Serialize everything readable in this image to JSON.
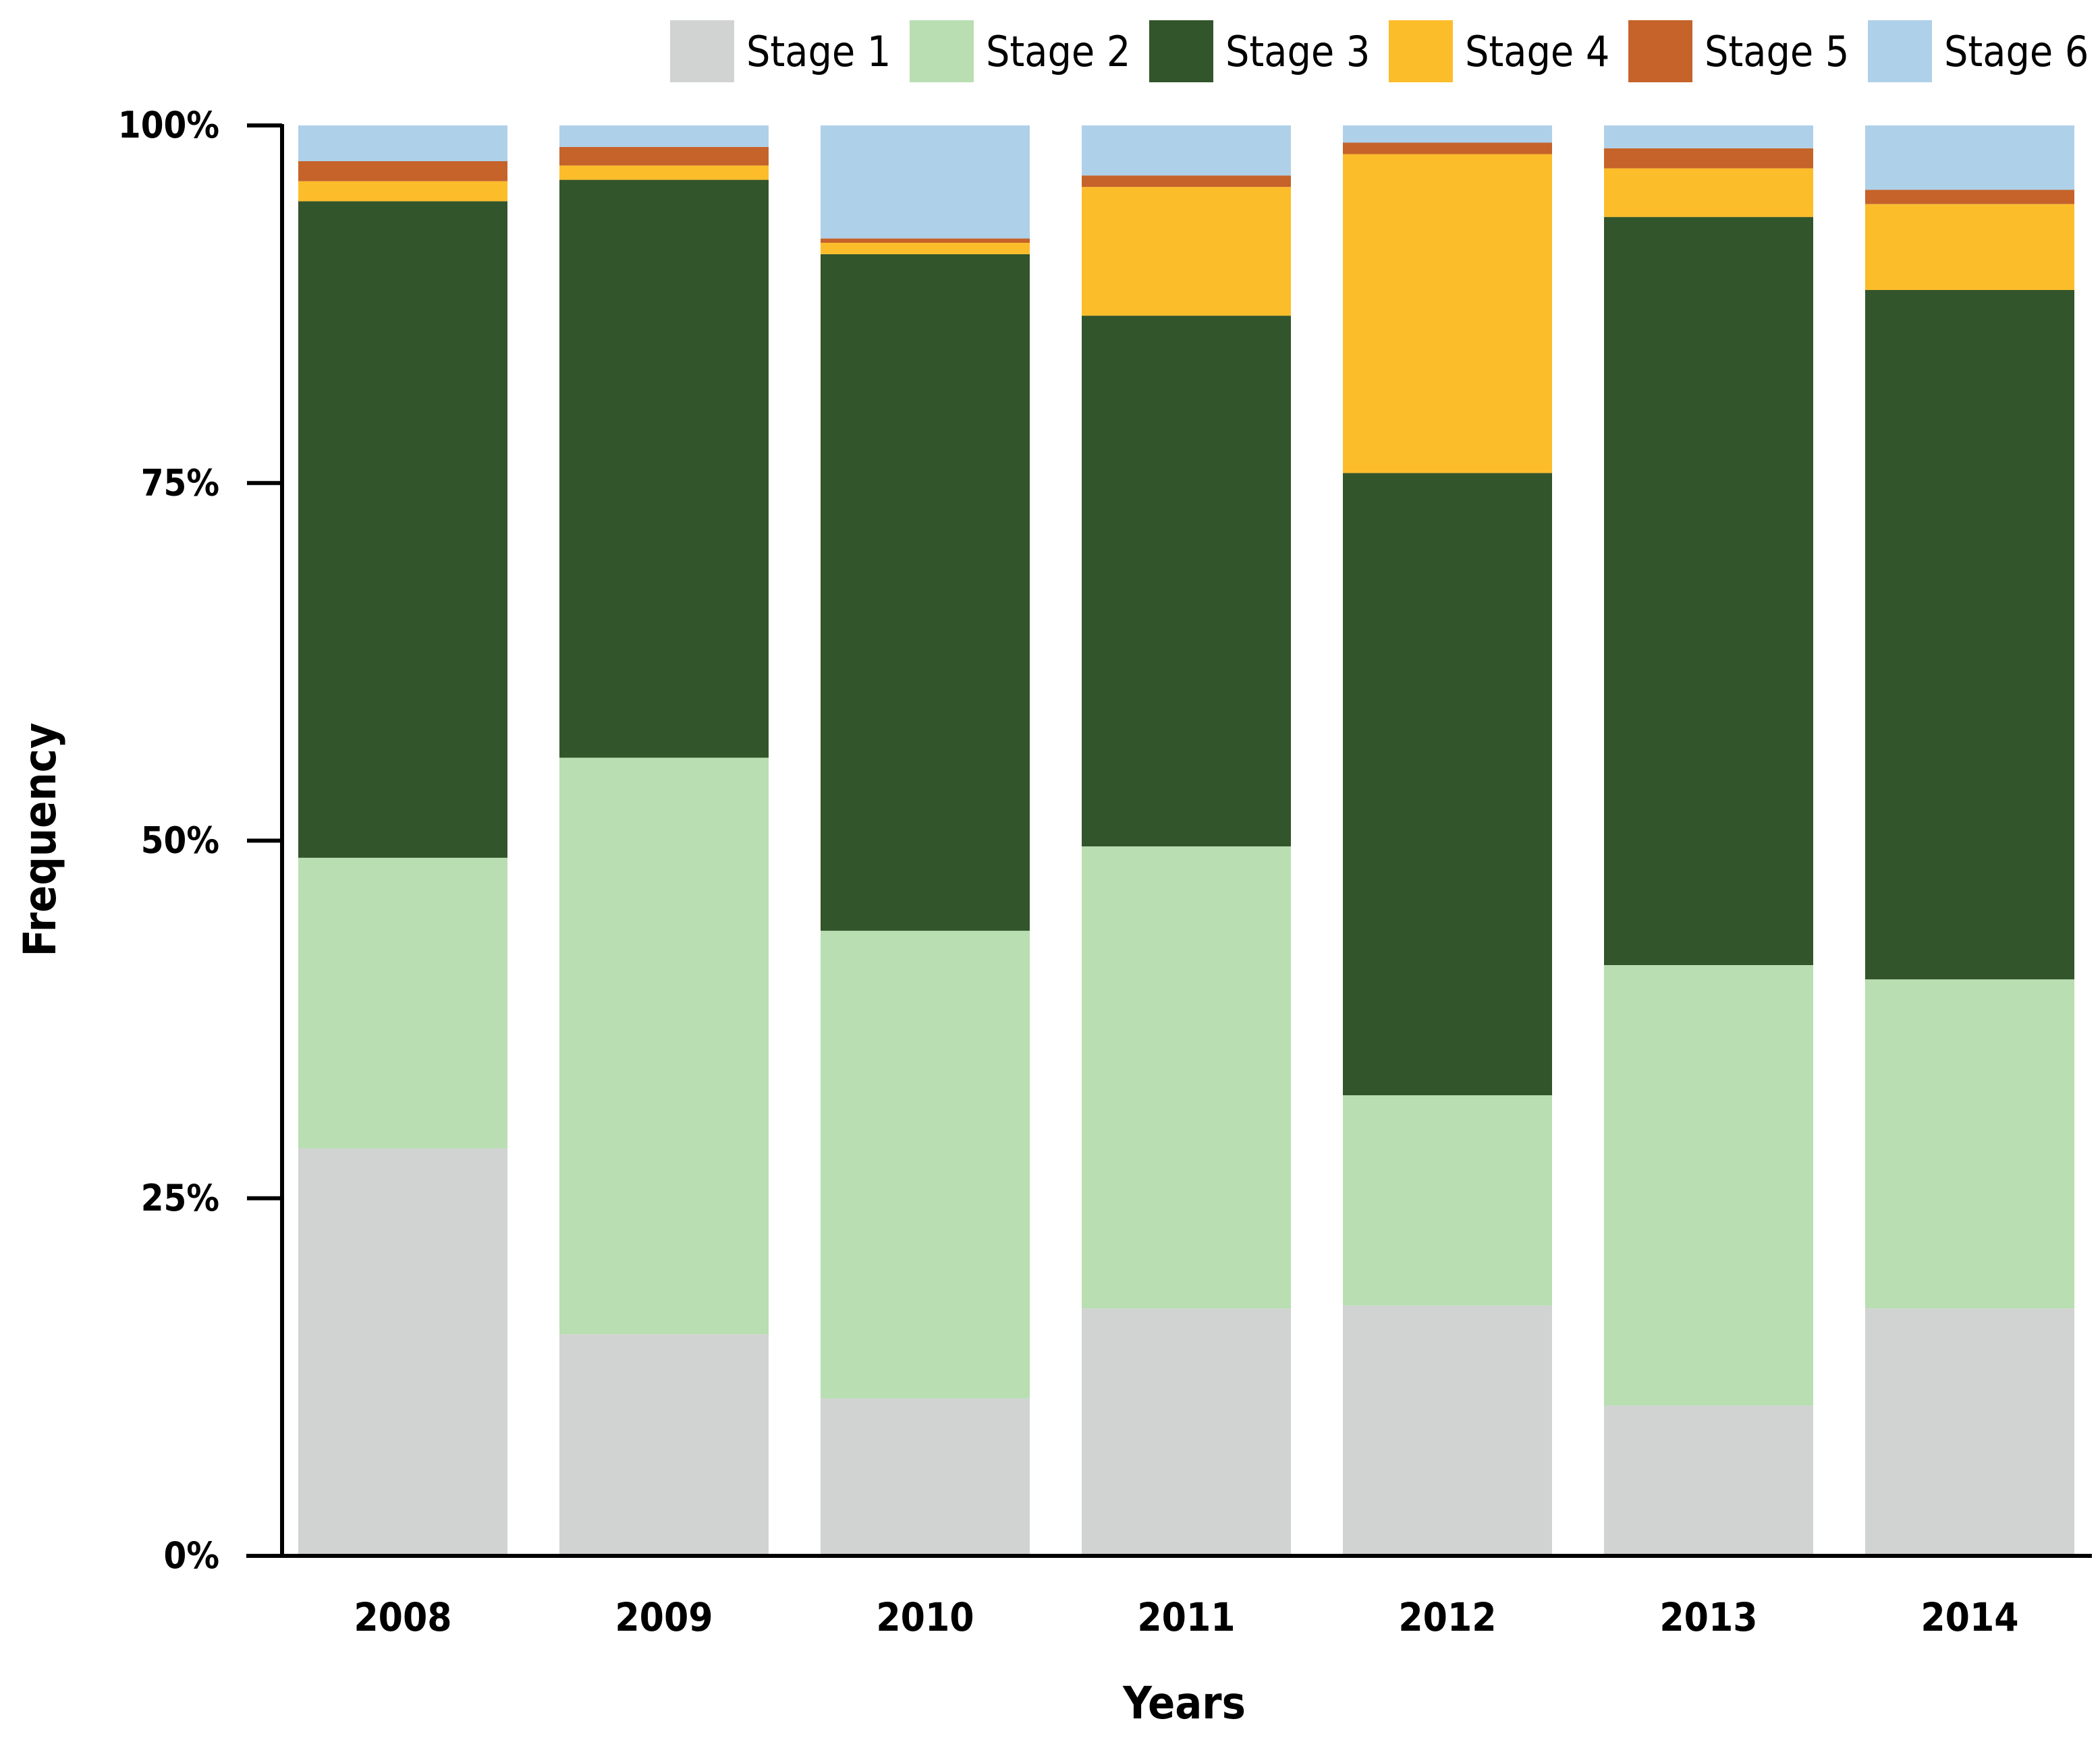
{
  "chart_data": {
    "type": "bar",
    "stacked": true,
    "normalized": true,
    "title": "",
    "xlabel": "Years",
    "ylabel": "Frequency",
    "ylim": [
      0,
      100
    ],
    "yticks": [
      {
        "value": 0,
        "label": "0%"
      },
      {
        "value": 25,
        "label": "25%"
      },
      {
        "value": 50,
        "label": "50%"
      },
      {
        "value": 75,
        "label": "75%"
      },
      {
        "value": 100,
        "label": "100%"
      }
    ],
    "legend_position": "top-right",
    "grid": false,
    "categories": [
      "2008",
      "2009",
      "2010",
      "2011",
      "2012",
      "2013",
      "2014"
    ],
    "series": [
      {
        "name": "Stage 1",
        "color": "#D1D3D2",
        "values": [
          28.5,
          15.5,
          11.0,
          17.3,
          17.5,
          10.5,
          17.3
        ]
      },
      {
        "name": "Stage 2",
        "color": "#B8DEB1",
        "values": [
          20.3,
          40.3,
          32.7,
          32.3,
          14.7,
          30.8,
          23.0
        ]
      },
      {
        "name": "Stage 3",
        "color": "#33552B",
        "values": [
          45.9,
          40.4,
          47.3,
          37.1,
          43.5,
          52.3,
          48.2
        ]
      },
      {
        "name": "Stage 4",
        "color": "#FCBD2B",
        "values": [
          1.4,
          1.0,
          0.8,
          9.0,
          22.3,
          3.4,
          6.0
        ]
      },
      {
        "name": "Stage 5",
        "color": "#C5632A",
        "values": [
          1.4,
          1.3,
          0.3,
          0.8,
          0.8,
          1.4,
          1.0
        ]
      },
      {
        "name": "Stage 6",
        "color": "#AFD0E9",
        "values": [
          2.5,
          1.5,
          7.9,
          3.5,
          1.2,
          1.6,
          4.5
        ]
      }
    ]
  }
}
